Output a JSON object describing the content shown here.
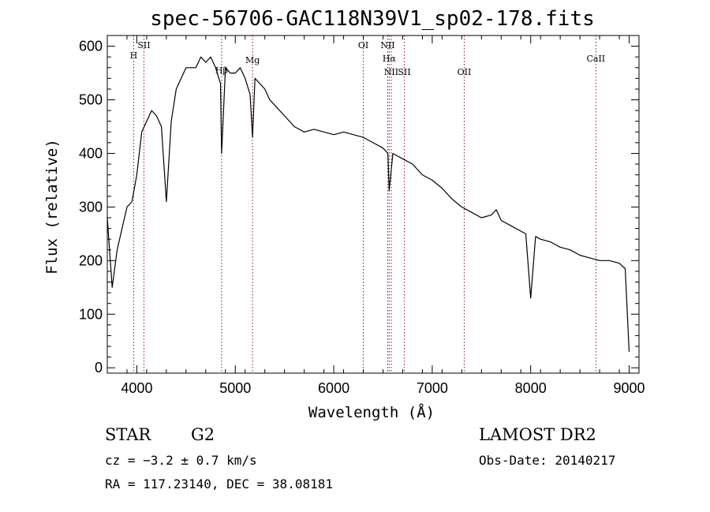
{
  "chart_data": {
    "type": "line",
    "title": "spec-56706-GAC118N39V1_sp02-178.fits",
    "xlabel": "Wavelength (Å)",
    "ylabel": "Flux (relative)",
    "xlim": [
      3700,
      9100
    ],
    "ylim": [
      -10,
      620
    ],
    "xticks": [
      4000,
      5000,
      6000,
      7000,
      8000,
      9000
    ],
    "yticks": [
      0,
      100,
      200,
      300,
      400,
      500,
      600
    ],
    "grid": false,
    "line_color": "#000000",
    "marker_color": "#8b1a1a",
    "spectral_lines": [
      {
        "name": "H",
        "wavelength": 3968
      },
      {
        "name": "SII",
        "wavelength": 4072
      },
      {
        "name": "Hβ",
        "wavelength": 4861
      },
      {
        "name": "Mg",
        "wavelength": 5175
      },
      {
        "name": "OI",
        "wavelength": 6300
      },
      {
        "name": "NII",
        "wavelength": 6548
      },
      {
        "name": "Hα",
        "wavelength": 6563
      },
      {
        "name": "NII",
        "wavelength": 6584
      },
      {
        "name": "SII",
        "wavelength": 6717
      },
      {
        "name": "OII",
        "wavelength": 7325
      },
      {
        "name": "CaII",
        "wavelength": 8662
      }
    ],
    "series": [
      {
        "x": [
          3700,
          3750,
          3800,
          3850,
          3900,
          3950,
          4000,
          4050,
          4100,
          4150,
          4200,
          4250,
          4300,
          4350,
          4400,
          4450,
          4500,
          4550,
          4600,
          4650,
          4700,
          4750,
          4800,
          4850,
          4861,
          4900,
          4950,
          5000,
          5050,
          5100,
          5150,
          5175,
          5200,
          5250,
          5300,
          5350,
          5400,
          5500,
          5600,
          5700,
          5800,
          5900,
          6000,
          6100,
          6200,
          6300,
          6400,
          6500,
          6550,
          6563,
          6600,
          6700,
          6800,
          6900,
          7000,
          7100,
          7200,
          7300,
          7400,
          7500,
          7600,
          7650,
          7700,
          7800,
          7900,
          7950,
          8000,
          8050,
          8100,
          8200,
          8300,
          8400,
          8500,
          8600,
          8700,
          8800,
          8900,
          8960,
          9000
        ],
        "y": [
          280,
          150,
          220,
          260,
          300,
          310,
          360,
          440,
          460,
          480,
          470,
          450,
          310,
          460,
          520,
          540,
          560,
          560,
          560,
          580,
          570,
          580,
          560,
          530,
          400,
          560,
          550,
          550,
          560,
          540,
          510,
          430,
          540,
          530,
          520,
          500,
          490,
          470,
          450,
          440,
          445,
          440,
          435,
          440,
          435,
          430,
          420,
          410,
          400,
          330,
          400,
          390,
          380,
          360,
          350,
          335,
          315,
          300,
          290,
          280,
          285,
          295,
          275,
          265,
          255,
          250,
          130,
          245,
          240,
          235,
          225,
          220,
          210,
          205,
          200,
          200,
          195,
          185,
          30
        ]
      }
    ]
  },
  "info": {
    "class": "STAR",
    "subclass": "G2",
    "survey": "LAMOST DR2",
    "cz": "cz = −3.2 ± 0.7 km/s",
    "obs_date": "Obs-Date: 20140217",
    "coords": "RA = 117.23140, DEC =  38.08181"
  }
}
